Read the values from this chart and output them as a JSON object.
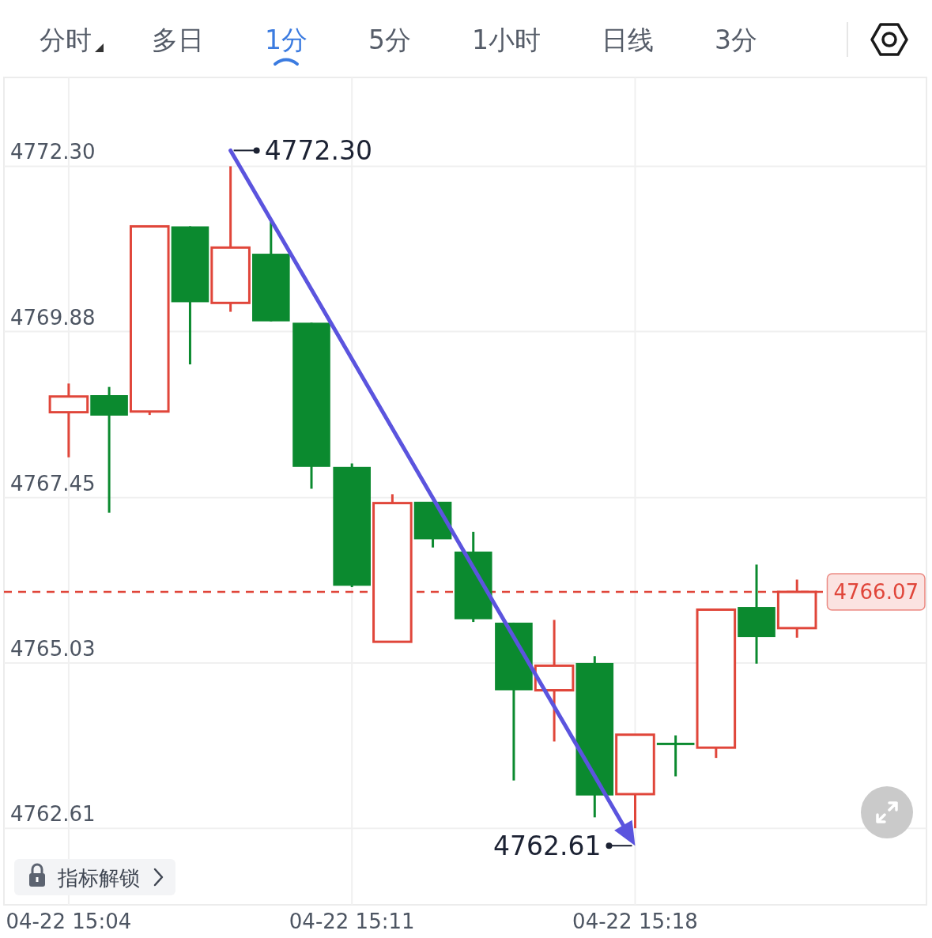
{
  "chart_data": {
    "type": "candlestick",
    "categories": [
      "04-22 15:04",
      null,
      null,
      null,
      null,
      null,
      null,
      "04-22 15:11",
      null,
      null,
      null,
      null,
      null,
      null,
      "04-22 15:18",
      null,
      null,
      null,
      null
    ],
    "ohlc": [
      [
        4768.7,
        4769.12,
        4768.04,
        4768.93
      ],
      [
        4768.95,
        4769.07,
        4767.23,
        4768.65
      ],
      [
        4768.71,
        4771.42,
        4768.66,
        4771.42
      ],
      [
        4771.42,
        4771.42,
        4769.4,
        4770.31
      ],
      [
        4770.3,
        4772.3,
        4770.17,
        4771.11
      ],
      [
        4771.02,
        4771.49,
        4770.03,
        4770.03
      ],
      [
        4770.01,
        4770.01,
        4767.58,
        4767.9
      ],
      [
        4767.9,
        4767.95,
        4766.14,
        4766.16
      ],
      [
        4765.34,
        4767.5,
        4765.34,
        4767.37
      ],
      [
        4767.39,
        4767.39,
        4766.72,
        4766.84
      ],
      [
        4766.66,
        4766.95,
        4765.63,
        4765.67
      ],
      [
        4765.62,
        4765.62,
        4763.31,
        4764.63
      ],
      [
        4764.63,
        4765.66,
        4763.88,
        4764.99
      ],
      [
        4765.03,
        4765.13,
        4762.77,
        4763.09
      ],
      [
        4763.11,
        4763.98,
        4762.61,
        4763.98
      ],
      [
        4763.85,
        4763.97,
        4763.37,
        4763.84
      ],
      [
        4763.79,
        4765.81,
        4763.64,
        4765.81
      ],
      [
        4765.85,
        4766.47,
        4765.02,
        4765.41
      ],
      [
        4765.54,
        4766.25,
        4765.4,
        4766.07
      ]
    ],
    "colors": [
      "#e0463a",
      "#0b8a2f",
      "#e0463a",
      "#0b8a2f",
      "#e0463a",
      "#0b8a2f",
      "#0b8a2f",
      "#0b8a2f",
      "#e0463a",
      "#0b8a2f",
      "#0b8a2f",
      "#0b8a2f",
      "#e0463a",
      "#0b8a2f",
      "#e0463a",
      "#0b8a2f",
      "#e0463a",
      "#0b8a2f",
      "#e0463a"
    ],
    "ylim": [
      4761.49,
      4773.6
    ],
    "yticks": [
      4762.61,
      4765.03,
      4767.45,
      4769.88,
      {
        "value": 4772.3,
        "label": "4772.30"
      }
    ],
    "grid": true,
    "ref_lines": [
      {
        "axis": "y",
        "value": 4766.07,
        "label": "4766.07",
        "color": "#e0463a",
        "line_style": "dashed"
      }
    ],
    "annotations": [
      "分时",
      "多日",
      "1分",
      "5分",
      "1小时",
      "日线",
      "3分",
      "指标解锁",
      "4772.30",
      {
        "text": "4762.61",
        "x": "04-22 15:18",
        "y": 4762.61
      }
    ]
  }
}
